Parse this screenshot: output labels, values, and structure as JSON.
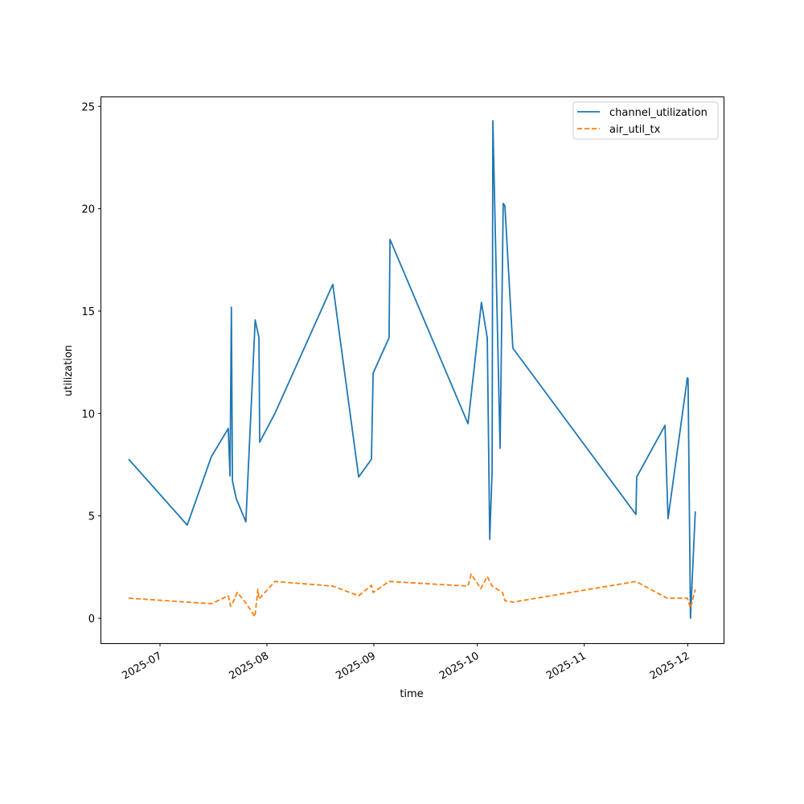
{
  "chart_data": {
    "type": "line",
    "title": "",
    "xlabel": "time",
    "ylabel": "utilization",
    "x_unit": "days since 2025-07-01",
    "xlim": [
      -17,
      163
    ],
    "ylim": [
      -1.2,
      25.5
    ],
    "yticks": [
      0,
      5,
      10,
      15,
      20,
      25
    ],
    "xticks": [
      {
        "label": "2025-07",
        "day": 0
      },
      {
        "label": "2025-08",
        "day": 31
      },
      {
        "label": "2025-09",
        "day": 62
      },
      {
        "label": "2025-10",
        "day": 92
      },
      {
        "label": "2025-11",
        "day": 123
      },
      {
        "label": "2025-12",
        "day": 153
      }
    ],
    "grid": false,
    "legend_position": "top-right",
    "series": [
      {
        "name": "channel_utilization",
        "color": "#1f77b4",
        "dash": "solid",
        "x": [
          -9.1,
          7.9,
          14.9,
          19.8,
          20.3,
          20.7,
          21.0,
          22.1,
          24.9,
          27.6,
          28.7,
          28.9,
          33.3,
          50.1,
          57.6,
          61.3,
          61.8,
          66.4,
          66.7,
          89.3,
          93.2,
          94.9,
          95.6,
          96.3,
          96.5,
          98.6,
          99.5,
          100.0,
          102.3,
          138.0,
          138.2,
          146.4,
          147.3,
          152.9,
          153.1,
          153.8,
          155.2
        ],
        "y": [
          7.77,
          4.55,
          7.89,
          9.27,
          6.95,
          15.19,
          6.71,
          5.85,
          4.71,
          14.57,
          13.7,
          8.6,
          10.0,
          16.3,
          6.9,
          7.77,
          11.97,
          13.7,
          18.5,
          9.5,
          15.43,
          13.68,
          3.85,
          7.2,
          24.3,
          8.3,
          20.26,
          20.14,
          13.19,
          5.07,
          6.9,
          9.42,
          4.87,
          11.74,
          11.7,
          0.0,
          5.22
        ]
      },
      {
        "name": "air_util_tx",
        "color": "#ff7f0e",
        "dash": "dashed",
        "x": [
          -9.1,
          14.9,
          19.8,
          20.5,
          21.2,
          22.4,
          24.9,
          27.5,
          28.4,
          28.7,
          33.3,
          50.1,
          57.6,
          61.3,
          61.8,
          66.4,
          89.3,
          90.2,
          93.0,
          94.9,
          96.3,
          99.3,
          100.0,
          102.3,
          138.0,
          147.0,
          152.9,
          153.8,
          155.2
        ],
        "y": [
          0.98,
          0.71,
          1.1,
          0.59,
          0.79,
          1.26,
          0.75,
          0.08,
          1.41,
          0.94,
          1.8,
          1.57,
          1.1,
          1.61,
          1.26,
          1.8,
          1.57,
          2.16,
          1.45,
          2.04,
          1.57,
          1.26,
          0.86,
          0.79,
          1.8,
          0.98,
          0.98,
          0.5,
          1.41
        ]
      }
    ]
  }
}
